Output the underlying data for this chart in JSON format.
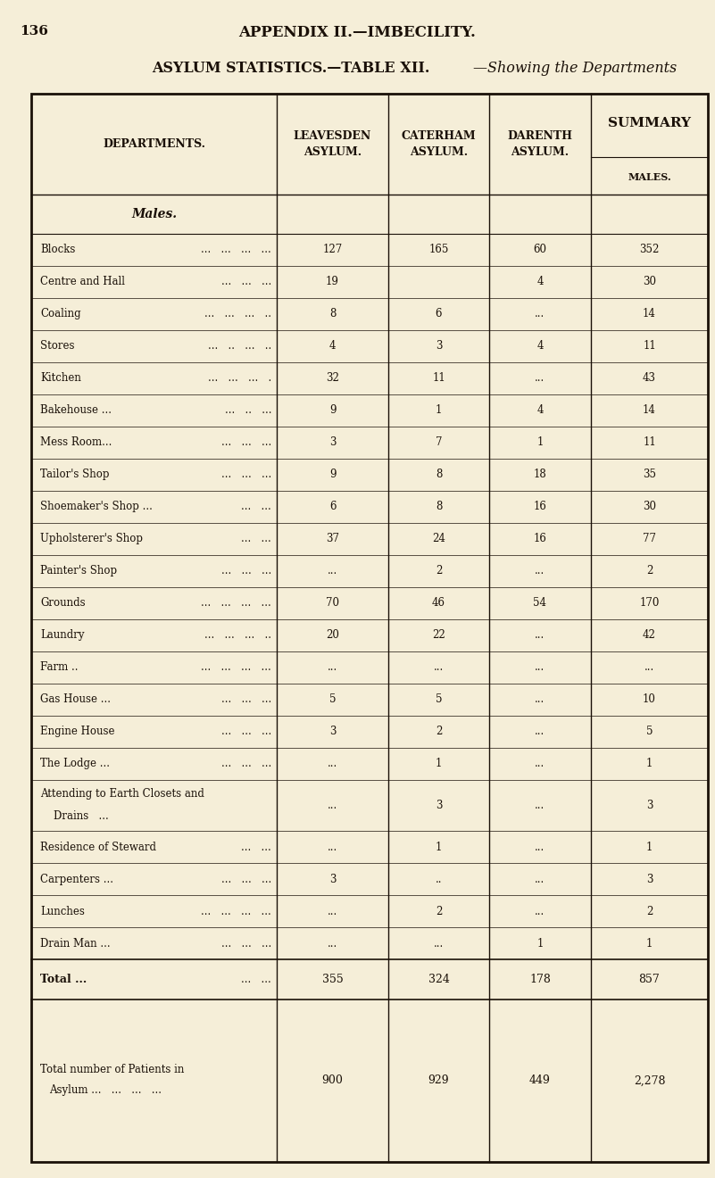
{
  "page_number": "136",
  "appendix_title": "APPENDIX II.—IMBECILITY.",
  "table_title_bold": "ASYLUM STATISTICS.—TABLE XII.",
  "table_title_italic": "—Showing the Departments",
  "rows": [
    {
      "dept": "Blocks",
      "dots": "...   ...   ...   ...",
      "leavesden": "127",
      "caterham": "165",
      "darenth": "60",
      "summary": "352"
    },
    {
      "dept": "Centre and Hall",
      "dots": "...   ...   ...",
      "leavesden": "19",
      "caterham": "",
      "darenth": "4",
      "summary": "30"
    },
    {
      "dept": "Coaling",
      "dots": "...   ...   ...   ..",
      "leavesden": "8",
      "caterham": "6",
      "darenth": "...",
      "summary": "14"
    },
    {
      "dept": "Stores",
      "dots": "...   ..   ...   ..",
      "leavesden": "4",
      "caterham": "3",
      "darenth": "4",
      "summary": "11"
    },
    {
      "dept": "Kitchen",
      "dots": "...   ...   ...   .",
      "leavesden": "32",
      "caterham": "11",
      "darenth": "...",
      "summary": "43"
    },
    {
      "dept": "Bakehouse ...",
      "dots": "...   ..   ...",
      "leavesden": "9",
      "caterham": "1",
      "darenth": "4",
      "summary": "14"
    },
    {
      "dept": "Mess Room...",
      "dots": "...   ...   ...",
      "leavesden": "3",
      "caterham": "7",
      "darenth": "1",
      "summary": "11"
    },
    {
      "dept": "Tailor's Shop",
      "dots": "...   ...   ...",
      "leavesden": "9",
      "caterham": "8",
      "darenth": "18",
      "summary": "35"
    },
    {
      "dept": "Shoemaker's Shop ...",
      "dots": "...   ...",
      "leavesden": "6",
      "caterham": "8",
      "darenth": "16",
      "summary": "30"
    },
    {
      "dept": "Upholsterer's Shop",
      "dots": "...   ...",
      "leavesden": "37",
      "caterham": "24",
      "darenth": "16",
      "summary": "77"
    },
    {
      "dept": "Painter's Shop",
      "dots": "...   ...   ...",
      "leavesden": "...",
      "caterham": "2",
      "darenth": "...",
      "summary": "2"
    },
    {
      "dept": "Grounds",
      "dots": "...   ...   ...   ...",
      "leavesden": "70",
      "caterham": "46",
      "darenth": "54",
      "summary": "170"
    },
    {
      "dept": "Laundry",
      "dots": "...   ...   ...   ..",
      "leavesden": "20",
      "caterham": "22",
      "darenth": "...",
      "summary": "42"
    },
    {
      "dept": "Farm ..",
      "dots": "...   ...   ...   ...",
      "leavesden": "...",
      "caterham": "...",
      "darenth": "...",
      "summary": "..."
    },
    {
      "dept": "Gas House ...",
      "dots": "...   ...   ...",
      "leavesden": "5",
      "caterham": "5",
      "darenth": "...",
      "summary": "10"
    },
    {
      "dept": "Engine House",
      "dots": "...   ...   ...",
      "leavesden": "3",
      "caterham": "2",
      "darenth": "...",
      "summary": "5"
    },
    {
      "dept": "The Lodge ...",
      "dots": "...   ...   ...",
      "leavesden": "...",
      "caterham": "1",
      "darenth": "...",
      "summary": "1"
    },
    {
      "dept": "Attending to Earth Closets and\n    Drains   ...",
      "dots": "..   ...   ...",
      "leavesden": "...",
      "caterham": "3",
      "darenth": "...",
      "summary": "3",
      "two_line": true
    },
    {
      "dept": "Residence of Steward",
      "dots": "...   ...",
      "leavesden": "...",
      "caterham": "1",
      "darenth": "...",
      "summary": "1"
    },
    {
      "dept": "Carpenters ...",
      "dots": "...   ...   ...",
      "leavesden": "3",
      "caterham": "..",
      "darenth": "...",
      "summary": "3"
    },
    {
      "dept": "Lunches",
      "dots": "...   ...   ...   ...",
      "leavesden": "...",
      "caterham": "2",
      "darenth": "...",
      "summary": "2"
    },
    {
      "dept": "Drain Man ...",
      "dots": "...   ...   ...",
      "leavesden": "...",
      "caterham": "...",
      "darenth": "1",
      "summary": "1"
    }
  ],
  "total_leavesden": "355",
  "total_caterham": "324",
  "total_darenth": "178",
  "total_summary": "857",
  "patients_leavesden": "900",
  "patients_caterham": "929",
  "patients_darenth": "449",
  "patients_summary": "2,278",
  "bg_color": "#f5eed8",
  "text_color": "#1a1008",
  "line_color": "#1a1008"
}
